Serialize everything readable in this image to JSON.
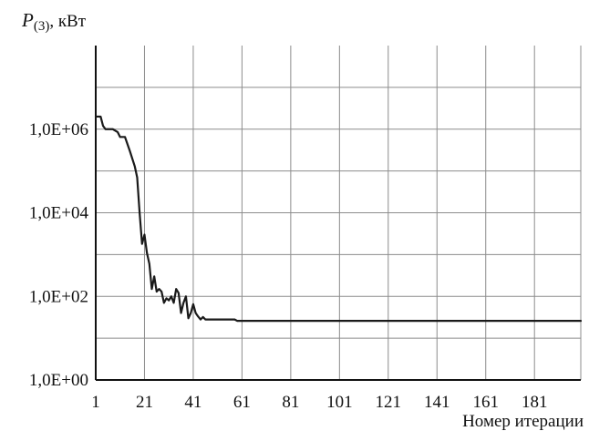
{
  "chart_data": {
    "type": "line",
    "title": "",
    "ylabel": {
      "symbol": "P",
      "subscript": "(3)",
      "unit": ", кВт"
    },
    "xlabel": "Номер итерации",
    "x_scale": "linear",
    "y_scale": "log",
    "xlim": [
      1,
      200
    ],
    "ylim": [
      1,
      100000000
    ],
    "x_ticks": [
      {
        "value": 1,
        "label": "1"
      },
      {
        "value": 21,
        "label": "21"
      },
      {
        "value": 41,
        "label": "41"
      },
      {
        "value": 61,
        "label": "61"
      },
      {
        "value": 81,
        "label": "81"
      },
      {
        "value": 101,
        "label": "101"
      },
      {
        "value": 121,
        "label": "121"
      },
      {
        "value": 141,
        "label": "141"
      },
      {
        "value": 161,
        "label": "161"
      },
      {
        "value": 181,
        "label": "181"
      }
    ],
    "y_ticks": [
      {
        "value": 1,
        "label": "1,0E+00"
      },
      {
        "value": 100,
        "label": "1,0E+02"
      },
      {
        "value": 10000,
        "label": "1,0E+04"
      },
      {
        "value": 1000000,
        "label": "1,0E+06"
      }
    ],
    "x_gridlines": [
      1,
      21,
      41,
      61,
      81,
      101,
      121,
      141,
      161,
      181,
      200
    ],
    "y_gridlines": [
      10,
      100,
      1000,
      10000,
      100000,
      1000000,
      10000000
    ],
    "grid": true,
    "legend": "none",
    "series": [
      {
        "color": "#1a1a1a",
        "points": [
          [
            1,
            2000000
          ],
          [
            3,
            2000000
          ],
          [
            4,
            1200000
          ],
          [
            5,
            1000000
          ],
          [
            8,
            1000000
          ],
          [
            10,
            850000
          ],
          [
            11,
            650000
          ],
          [
            13,
            650000
          ],
          [
            15,
            300000
          ],
          [
            17,
            130000
          ],
          [
            18,
            70000
          ],
          [
            19,
            10000
          ],
          [
            20,
            1800
          ],
          [
            21,
            3000
          ],
          [
            22,
            1100
          ],
          [
            23,
            600
          ],
          [
            24,
            150
          ],
          [
            25,
            300
          ],
          [
            26,
            130
          ],
          [
            27,
            150
          ],
          [
            28,
            130
          ],
          [
            29,
            70
          ],
          [
            30,
            90
          ],
          [
            31,
            80
          ],
          [
            32,
            100
          ],
          [
            33,
            70
          ],
          [
            34,
            150
          ],
          [
            35,
            120
          ],
          [
            36,
            40
          ],
          [
            37,
            70
          ],
          [
            38,
            100
          ],
          [
            39,
            30
          ],
          [
            40,
            40
          ],
          [
            41,
            65
          ],
          [
            42,
            40
          ],
          [
            43,
            33
          ],
          [
            44,
            28
          ],
          [
            45,
            32
          ],
          [
            46,
            28
          ],
          [
            48,
            28
          ],
          [
            58,
            28
          ],
          [
            59,
            26
          ],
          [
            200,
            26
          ]
        ]
      }
    ]
  }
}
